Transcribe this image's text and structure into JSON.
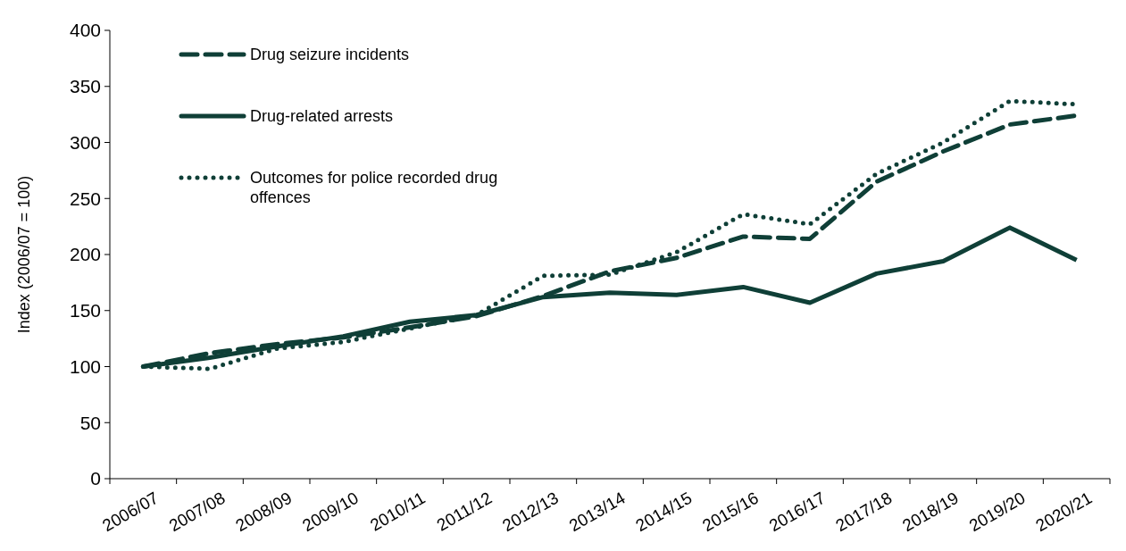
{
  "chart_data": {
    "type": "line",
    "ylabel": "Index (2006/07 = 100)",
    "categories": [
      "2006/07",
      "2007/08",
      "2008/09",
      "2009/10",
      "2010/11",
      "2011/12",
      "2012/13",
      "2013/14",
      "2014/15",
      "2015/16",
      "2016/17",
      "2017/18",
      "2018/19",
      "2019/20",
      "2020/21"
    ],
    "series": [
      {
        "name": "Drug seizure incidents",
        "color": "#0f3f37",
        "line_style": "dashed",
        "values": [
          100,
          112,
          120,
          126,
          135,
          145,
          163,
          185,
          197,
          216,
          214,
          265,
          292,
          316,
          324
        ]
      },
      {
        "name": "Drug-related arrests",
        "color": "#0f3f37",
        "line_style": "solid",
        "values": [
          100,
          108,
          118,
          127,
          140,
          146,
          162,
          166,
          164,
          171,
          157,
          183,
          194,
          224,
          195
        ]
      },
      {
        "name": "Outcomes for police recorded drug offences",
        "color": "#0f3f37",
        "line_style": "dotted",
        "values": [
          100,
          98,
          116,
          122,
          134,
          146,
          181,
          182,
          202,
          236,
          227,
          272,
          300,
          337,
          334
        ]
      }
    ],
    "ylim": [
      0,
      400
    ],
    "yticks": [
      0,
      50,
      100,
      150,
      200,
      250,
      300,
      350,
      400
    ],
    "grid": false,
    "legend": "top left"
  }
}
